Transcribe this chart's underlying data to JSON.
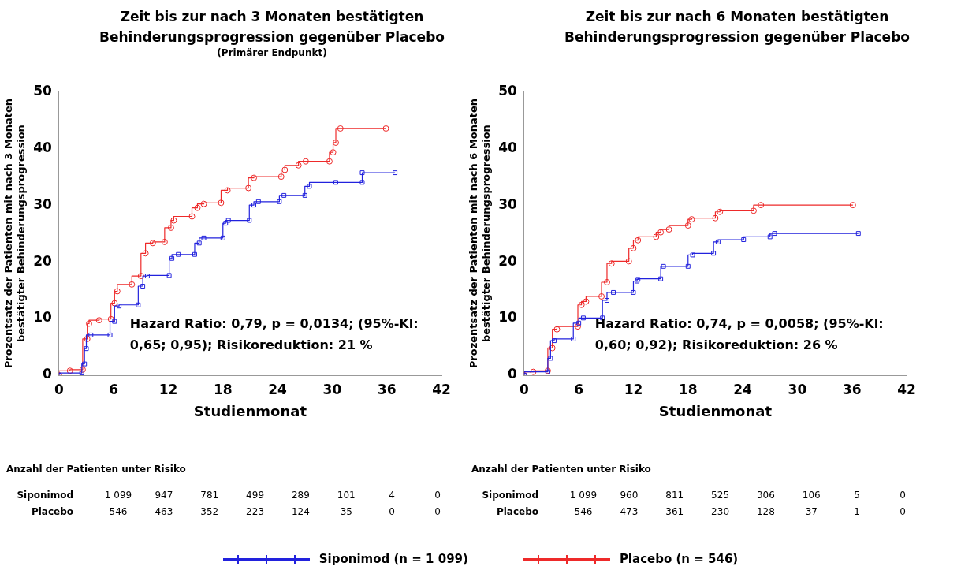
{
  "chart_data": [
    {
      "type": "step",
      "title": "Zeit bis zur nach 3 Monaten bestätigten Behinderungsprogression gegenüber Placebo",
      "subtitle": "(Primärer Endpunkt)",
      "xlabel": "Studienmonat",
      "ylabel": "Prozentsatz der Patienten mit nach 3 Monaten bestätigter Behinderungsprogression",
      "xlim": [
        0,
        42
      ],
      "xticks": [
        0,
        6,
        12,
        18,
        24,
        30,
        36,
        42
      ],
      "ylim": [
        0,
        50
      ],
      "yticks": [
        0,
        10,
        20,
        30,
        40,
        50
      ],
      "grid": false,
      "legend": "bottom",
      "series": [
        {
          "name": "Siponimod (n = 1 099)",
          "color": "#2222dd",
          "marker": "square",
          "x": [
            0,
            2.5,
            2.8,
            3.0,
            3.5,
            5.6,
            6.1,
            6.6,
            8.7,
            9.2,
            9.7,
            12.1,
            12.4,
            13.1,
            14.9,
            15.4,
            15.9,
            18.0,
            18.3,
            18.6,
            20.9,
            21.4,
            21.9,
            24.2,
            24.7,
            27.0,
            27.5,
            30.4,
            33.3,
            33.3,
            36.9
          ],
          "values": [
            0,
            0.4,
            2,
            4.7,
            7.1,
            7.1,
            9.5,
            12.2,
            12.4,
            15.7,
            17.5,
            17.6,
            20.6,
            21.3,
            21.3,
            23.3,
            24.2,
            24.2,
            26.8,
            27.3,
            27.3,
            30,
            30.6,
            30.6,
            31.7,
            31.7,
            33.3,
            34,
            34,
            35.7,
            35.7
          ]
        },
        {
          "name": "Placebo (n = 546)",
          "color": "#ee2a2a",
          "marker": "circle",
          "x": [
            0,
            1.2,
            2.6,
            3.1,
            3.3,
            4.4,
            5.7,
            6.1,
            6.4,
            8.0,
            9.0,
            9.5,
            10.3,
            11.6,
            12.3,
            12.6,
            14.6,
            15.2,
            15.9,
            17.8,
            18.5,
            20.8,
            21.4,
            24.4,
            24.8,
            26.3,
            27.1,
            29.7,
            30.1,
            30.4,
            30.9,
            35.9
          ],
          "values": [
            0,
            0.8,
            1.0,
            6.4,
            9.1,
            9.7,
            9.9,
            12.7,
            14.8,
            16,
            17.5,
            21.5,
            23.3,
            23.5,
            26,
            27.3,
            28,
            29.5,
            30.2,
            30.4,
            32.6,
            33,
            34.8,
            35,
            36.2,
            37,
            37.7,
            37.7,
            39.3,
            41,
            43.5,
            43.5
          ]
        }
      ],
      "annotations": [
        "Hazard Ratio: 0,79, p = 0,0134; (95%-Kl: 0,65; 0,95); Risikoreduktion: 21 %",
        "Anzahl der Patienten unter Risiko",
        "Siponimod",
        "1 099",
        "947",
        "781",
        "499",
        "289",
        "101",
        "4",
        "0",
        "Placebo",
        "546",
        "463",
        "352",
        "223",
        "124",
        "35",
        "0",
        "0"
      ]
    },
    {
      "type": "step",
      "title": "Zeit bis zur nach 6 Monaten bestätigten Behinderungsprogression gegenüber Placebo",
      "xlabel": "Studienmonat",
      "ylabel": "Prozentsatz der Patienten mit nach 6 Monaten bestätigter Behinderungsprogression",
      "xlim": [
        0,
        42
      ],
      "xticks": [
        0,
        6,
        12,
        18,
        24,
        30,
        36,
        42
      ],
      "ylim": [
        0,
        50
      ],
      "yticks": [
        0,
        10,
        20,
        30,
        40,
        50
      ],
      "grid": false,
      "series": [
        {
          "color": "#2222dd",
          "marker": "square",
          "x": [
            0,
            2.6,
            2.9,
            3.3,
            5.4,
            6.0,
            6.5,
            8.6,
            9.1,
            9.8,
            12.0,
            12.4,
            12.5,
            15.0,
            15.3,
            18.0,
            18.5,
            20.8,
            21.3,
            24.1,
            27.0,
            27.5,
            36.7
          ],
          "values": [
            0,
            0.6,
            3,
            6.1,
            6.4,
            9.2,
            10.1,
            10.1,
            13.2,
            14.6,
            14.6,
            16.6,
            16.9,
            17,
            19.2,
            19.2,
            21.2,
            21.5,
            23.5,
            23.9,
            24.4,
            25,
            25
          ]
        },
        {
          "color": "#ee2a2a",
          "marker": "circle",
          "x": [
            0,
            1.0,
            2.6,
            3.1,
            3.6,
            5.9,
            6.3,
            6.8,
            8.5,
            9.1,
            9.6,
            11.5,
            12.0,
            12.5,
            14.5,
            15.0,
            15.9,
            18.0,
            18.4,
            21.0,
            21.5,
            25.2,
            26.0,
            36.1
          ],
          "values": [
            0,
            0.6,
            0.8,
            4.8,
            8.1,
            8.6,
            12.4,
            13,
            13.9,
            16.4,
            19.7,
            20.1,
            22.4,
            23.8,
            24.4,
            25.2,
            25.7,
            26.4,
            27.5,
            27.7,
            28.8,
            29,
            30,
            30
          ]
        }
      ],
      "annotations": [
        "Hazard Ratio: 0,74, p = 0,0058; (95%-Kl: 0,60; 0,92); Risikoreduktion: 26 %",
        "Anzahl der Patienten unter Risiko",
        "Siponimod",
        "1 099",
        "960",
        "811",
        "525",
        "306",
        "106",
        "5",
        "0",
        "Placebo",
        "546",
        "473",
        "361",
        "230",
        "128",
        "37",
        "1",
        "0"
      ]
    }
  ]
}
